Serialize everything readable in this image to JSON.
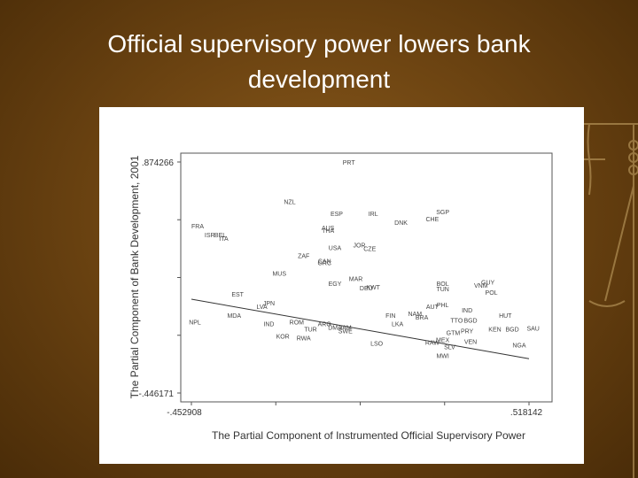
{
  "slide": {
    "title_line1": "Official supervisory power lowers bank",
    "title_line2": "development"
  },
  "chart_data": {
    "type": "scatter",
    "title": "",
    "xlabel": "The Partial Component of Instrumented Official Supervisory Power",
    "ylabel": "The Partial Component of Bank Development, 2001",
    "x_min_label": "-.452908",
    "x_max_label": ".518142",
    "y_max_label": ".874266",
    "y_min_label": "-.446171",
    "xlim": [
      -0.452908,
      0.518142
    ],
    "ylim": [
      -0.446171,
      0.874266
    ],
    "grid": false,
    "fit_line": {
      "x": [
        -0.452908,
        0.518142
      ],
      "y": [
        0.09,
        -0.25
      ]
    },
    "points": [
      {
        "label": "PRT",
        "x": 0.0,
        "y": 0.874
      },
      {
        "label": "NZL",
        "x": -0.17,
        "y": 0.65
      },
      {
        "label": "ESP",
        "x": -0.035,
        "y": 0.58
      },
      {
        "label": "IRL",
        "x": 0.07,
        "y": 0.58
      },
      {
        "label": "SGP",
        "x": 0.27,
        "y": 0.59
      },
      {
        "label": "CHE",
        "x": 0.24,
        "y": 0.55
      },
      {
        "label": "DNK",
        "x": 0.15,
        "y": 0.53
      },
      {
        "label": "FRA",
        "x": -0.435,
        "y": 0.51
      },
      {
        "label": "AUS",
        "x": -0.06,
        "y": 0.5
      },
      {
        "label": "THA",
        "x": -0.06,
        "y": 0.485
      },
      {
        "label": "ISR",
        "x": -0.4,
        "y": 0.46
      },
      {
        "label": "BEL",
        "x": -0.37,
        "y": 0.46
      },
      {
        "label": "ITA",
        "x": -0.36,
        "y": 0.44
      },
      {
        "label": "JOR",
        "x": 0.03,
        "y": 0.4
      },
      {
        "label": "CZE",
        "x": 0.06,
        "y": 0.38
      },
      {
        "label": "USA",
        "x": -0.04,
        "y": 0.385
      },
      {
        "label": "ZAF",
        "x": -0.13,
        "y": 0.34
      },
      {
        "label": "CAN",
        "x": -0.07,
        "y": 0.31
      },
      {
        "label": "GRC",
        "x": -0.07,
        "y": 0.3
      },
      {
        "label": "MUS",
        "x": -0.2,
        "y": 0.24
      },
      {
        "label": "MAR",
        "x": 0.02,
        "y": 0.21
      },
      {
        "label": "EGY",
        "x": -0.04,
        "y": 0.18
      },
      {
        "label": "KWT",
        "x": 0.07,
        "y": 0.16
      },
      {
        "label": "DEU",
        "x": 0.05,
        "y": 0.155
      },
      {
        "label": "BOL",
        "x": 0.27,
        "y": 0.18
      },
      {
        "label": "TUN",
        "x": 0.27,
        "y": 0.15
      },
      {
        "label": "GUY",
        "x": 0.4,
        "y": 0.19
      },
      {
        "label": "VNM",
        "x": 0.38,
        "y": 0.17
      },
      {
        "label": "POL",
        "x": 0.41,
        "y": 0.13
      },
      {
        "label": "EST",
        "x": -0.32,
        "y": 0.12
      },
      {
        "label": "JPN",
        "x": -0.23,
        "y": 0.07
      },
      {
        "label": "LVA",
        "x": -0.25,
        "y": 0.05
      },
      {
        "label": "PHL",
        "x": 0.27,
        "y": 0.06
      },
      {
        "label": "AUT",
        "x": 0.24,
        "y": 0.05
      },
      {
        "label": "IND",
        "x": 0.34,
        "y": 0.03
      },
      {
        "label": "MDA",
        "x": -0.33,
        "y": 0.0
      },
      {
        "label": "NAM",
        "x": 0.19,
        "y": 0.01
      },
      {
        "label": "FIN",
        "x": 0.12,
        "y": 0.0
      },
      {
        "label": "BRA",
        "x": 0.21,
        "y": -0.01
      },
      {
        "label": "HUT",
        "x": 0.45,
        "y": 0.0
      },
      {
        "label": "NPL",
        "x": -0.45,
        "y": -0.04
      },
      {
        "label": "IND",
        "x": -0.23,
        "y": -0.05
      },
      {
        "label": "ROM",
        "x": -0.15,
        "y": -0.04
      },
      {
        "label": "ARG",
        "x": -0.07,
        "y": -0.05
      },
      {
        "label": "LKA",
        "x": 0.14,
        "y": -0.05
      },
      {
        "label": "TTO",
        "x": 0.31,
        "y": -0.03
      },
      {
        "label": "BGD",
        "x": 0.35,
        "y": -0.03
      },
      {
        "label": "TUR",
        "x": -0.11,
        "y": -0.08
      },
      {
        "label": "DMA",
        "x": -0.04,
        "y": -0.07
      },
      {
        "label": "JAM",
        "x": -0.01,
        "y": -0.07
      },
      {
        "label": "SWE",
        "x": -0.01,
        "y": -0.09
      },
      {
        "label": "GTM",
        "x": 0.3,
        "y": -0.1
      },
      {
        "label": "PRY",
        "x": 0.34,
        "y": -0.09
      },
      {
        "label": "KEN",
        "x": 0.42,
        "y": -0.08
      },
      {
        "label": "BGD",
        "x": 0.47,
        "y": -0.08
      },
      {
        "label": "SAU",
        "x": 0.53,
        "y": -0.075
      },
      {
        "label": "KOR",
        "x": -0.19,
        "y": -0.12
      },
      {
        "label": "RWA",
        "x": -0.13,
        "y": -0.13
      },
      {
        "label": "MEX",
        "x": 0.27,
        "y": -0.14
      },
      {
        "label": "RAW",
        "x": 0.24,
        "y": -0.155
      },
      {
        "label": "LSO",
        "x": 0.08,
        "y": -0.16
      },
      {
        "label": "VEN",
        "x": 0.35,
        "y": -0.15
      },
      {
        "label": "SLV",
        "x": 0.29,
        "y": -0.18
      },
      {
        "label": "NGA",
        "x": 0.49,
        "y": -0.17
      },
      {
        "label": "MWI",
        "x": 0.27,
        "y": -0.23
      }
    ]
  }
}
